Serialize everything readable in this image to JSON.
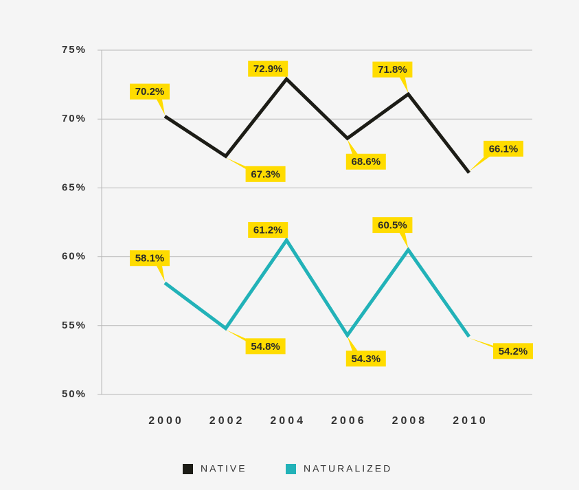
{
  "chart_data": {
    "type": "line",
    "categories": [
      "2000",
      "2002",
      "2004",
      "2006",
      "2008",
      "2010"
    ],
    "series": [
      {
        "name": "NATIVE",
        "color": "#1c1c16",
        "values": [
          70.2,
          67.3,
          72.9,
          68.6,
          71.8,
          66.1
        ],
        "value_labels": [
          "70.2%",
          "67.3%",
          "72.9%",
          "68.6%",
          "71.8%",
          "66.1%"
        ]
      },
      {
        "name": "NATURALIZED",
        "color": "#22b2b8",
        "values": [
          58.1,
          54.8,
          61.2,
          54.3,
          60.5,
          54.2
        ],
        "value_labels": [
          "58.1%",
          "54.8%",
          "61.2%",
          "54.3%",
          "60.5%",
          "54.2%"
        ]
      }
    ],
    "ylim": [
      50,
      75
    ],
    "yticks": [
      {
        "value": 50,
        "label": "50%"
      },
      {
        "value": 55,
        "label": "55%"
      },
      {
        "value": 60,
        "label": "60%"
      },
      {
        "value": 65,
        "label": "65%"
      },
      {
        "value": 70,
        "label": "70%"
      },
      {
        "value": 75,
        "label": "75%"
      }
    ],
    "grid": true,
    "label_color": "#ffdc00"
  }
}
